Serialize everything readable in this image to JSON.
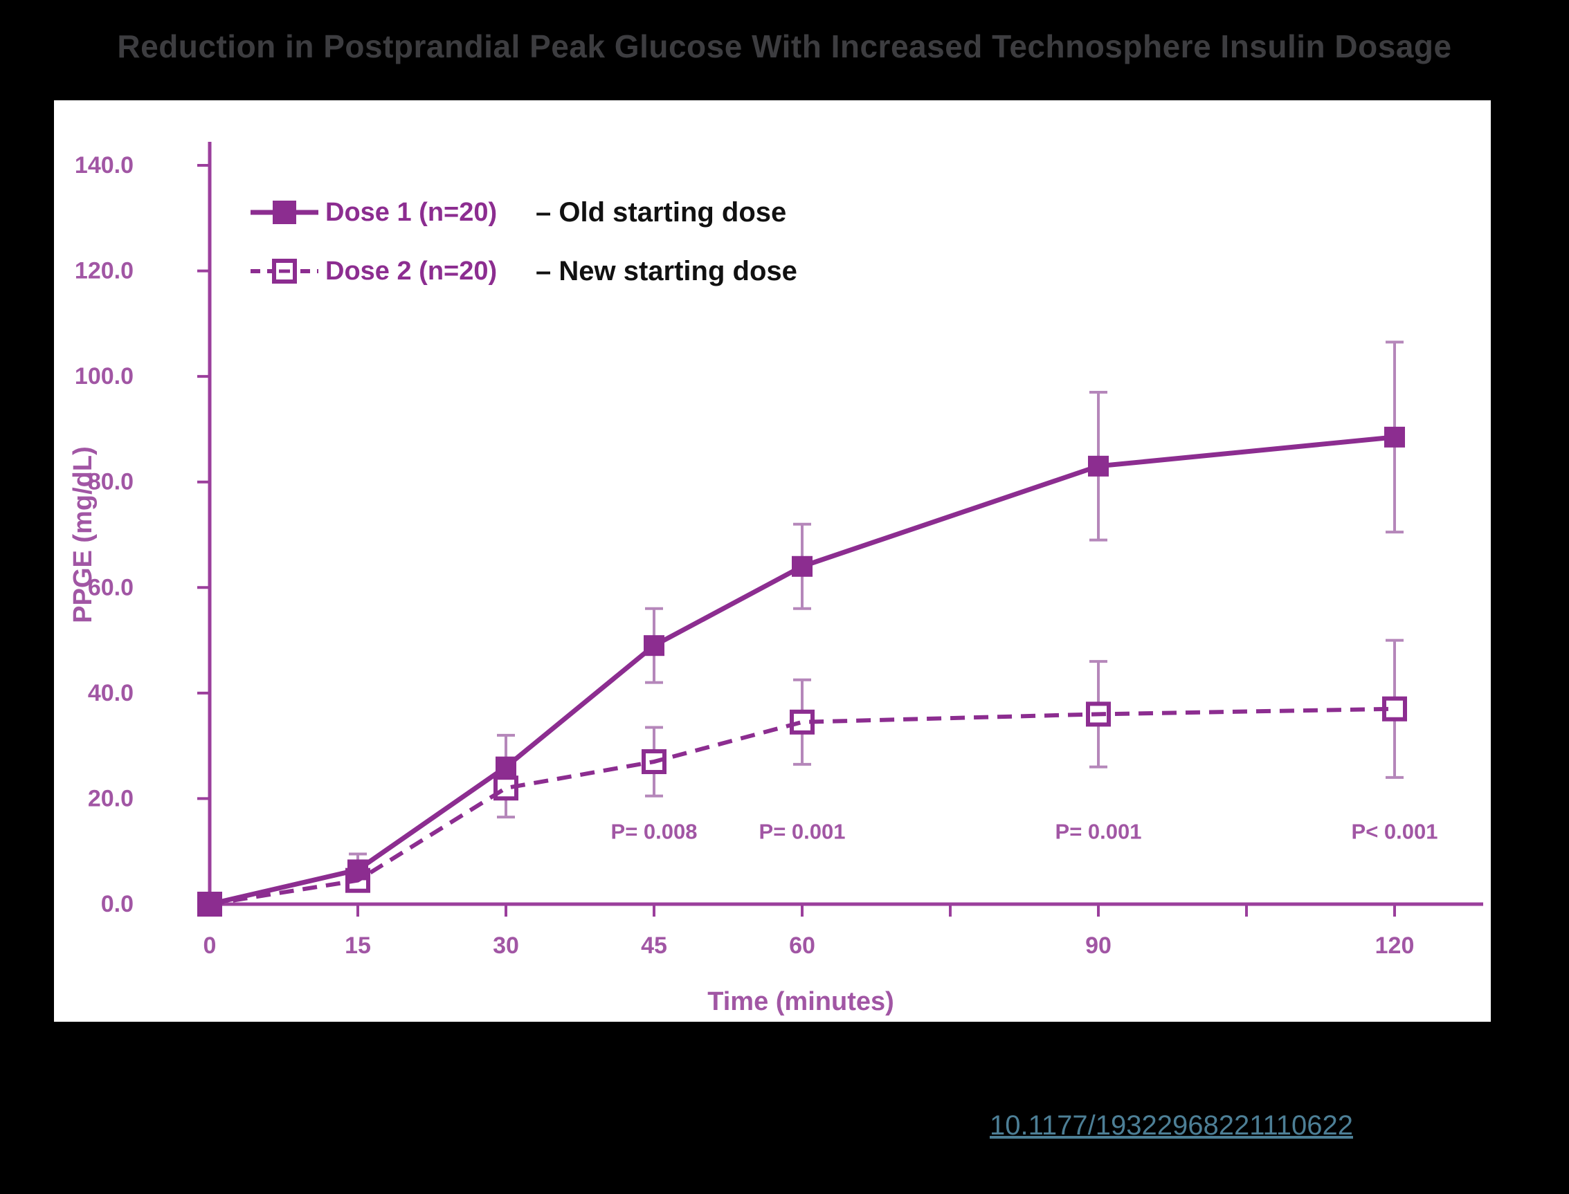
{
  "title": "Reduction in Postprandial Peak Glucose With Increased Technosphere Insulin Dosage",
  "chart_data": {
    "type": "line",
    "x": [
      0,
      15,
      30,
      45,
      60,
      90,
      120
    ],
    "xlabel": "Time (minutes)",
    "ylabel": "PPGE (mg/dL)",
    "ylim": [
      0,
      140
    ],
    "ytick_step": 20,
    "y_tick_labels": [
      "0.0",
      "20.0",
      "40.0",
      "60.0",
      "80.0",
      "100.0",
      "120.0",
      "140.0"
    ],
    "x_axis_tick_positions": [
      0,
      15,
      30,
      45,
      60,
      75,
      90,
      105,
      120
    ],
    "x_labeled_ticks": [
      0,
      15,
      30,
      45,
      60,
      90,
      120
    ],
    "grid": false,
    "legend_position": "top-left",
    "series": [
      {
        "name": "Dose 1 (n=20)",
        "legend_annotation": "– Old starting dose",
        "line_style": "solid",
        "marker": "filled-square",
        "values": [
          0,
          6.5,
          26,
          49,
          64,
          83,
          88.5
        ],
        "error_bars": [
          0,
          3,
          6,
          7,
          8,
          14,
          18
        ]
      },
      {
        "name": "Dose 2 (n=20)",
        "legend_annotation": "– New starting dose",
        "line_style": "dashed",
        "marker": "open-square",
        "values": [
          0,
          4.5,
          22,
          27,
          34.5,
          36,
          37
        ],
        "error_bars": [
          0,
          2,
          5.5,
          6.5,
          8,
          10,
          13
        ]
      }
    ],
    "p_value_annotations": [
      {
        "x": 45,
        "label": "P= 0.008"
      },
      {
        "x": 60,
        "label": "P= 0.001"
      },
      {
        "x": 90,
        "label": "P= 0.001"
      },
      {
        "x": 120,
        "label": "P< 0.001"
      }
    ]
  },
  "footer": {
    "doi_link": "10.1177/19322968221110622"
  },
  "colors": {
    "background": "#000000",
    "panel": "#ffffff",
    "series_purple": "#8c2d90",
    "axis_purple": "#9b3f9c",
    "tick_label_purple": "#a156a4",
    "error_bar_purple": "#b587ba",
    "p_value_purple": "#a156a4",
    "legend_black": "#111111",
    "title_gray": "#3d3d40",
    "doi_teal": "#4d7f96"
  }
}
